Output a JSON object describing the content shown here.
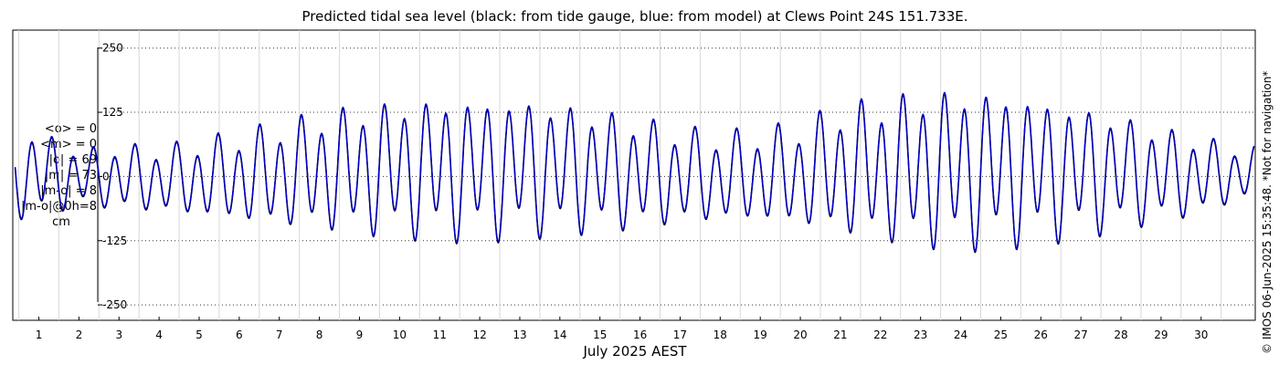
{
  "title": "Predicted tidal sea level (black: from tide gauge, blue: from model) at Clews Point 24S 151.733E.",
  "stats": [
    "<o> = 0",
    "<m> = 0",
    "|o| = 69",
    "|m| = 73",
    "|m-o| = 8",
    "|m-o|@0h=8"
  ],
  "stats_unit": "cm",
  "footer": "© IMOS 06-Jun-2025 15:35:48. *Not for navigation*",
  "chart_data": {
    "type": "line",
    "title": "Predicted tidal sea level (black: from tide gauge, blue: from model) at Clews Point 24S 151.733E.",
    "xlabel": "July 2025 AEST",
    "ylabel": "",
    "ylim": [
      -280,
      285
    ],
    "xlim": [
      0.35,
      31.35
    ],
    "y_ticks": [
      250,
      125,
      0,
      -125,
      -250
    ],
    "y_tick_labels": [
      "250",
      "125",
      "0",
      "-125",
      "-250"
    ],
    "x_ticks": [
      1,
      2,
      3,
      4,
      5,
      6,
      7,
      8,
      9,
      10,
      11,
      12,
      13,
      14,
      15,
      16,
      17,
      18,
      19,
      20,
      21,
      22,
      23,
      24,
      25,
      26,
      27,
      28,
      29,
      30
    ],
    "x_tick_labels": [
      "1",
      "2",
      "3",
      "4",
      "5",
      "6",
      "7",
      "8",
      "9",
      "10",
      "11",
      "12",
      "13",
      "14",
      "15",
      "16",
      "17",
      "18",
      "19",
      "20",
      "21",
      "22",
      "23",
      "24",
      "25",
      "26",
      "27",
      "28",
      "29",
      "30"
    ],
    "grid": true,
    "series": [
      {
        "name": "from tide gauge",
        "color": "#000000",
        "tide_model": {
          "semidiurnal_period_days": 0.5175,
          "diurnal_period_days": 1.0758,
          "mean": 0
        }
      },
      {
        "name": "from model",
        "color": "#0000cc",
        "tide_model": {
          "semidiurnal_period_days": 0.5175,
          "diurnal_period_days": 1.0758,
          "mean": 0
        }
      }
    ],
    "daily_high_low": [
      {
        "day": 1,
        "high": 95,
        "low": -85
      },
      {
        "day": 2,
        "high": 55,
        "low": -60
      },
      {
        "day": 3,
        "high": 65,
        "low": -70
      },
      {
        "day": 4,
        "high": 60,
        "low": -75
      },
      {
        "day": 5,
        "high": 75,
        "low": -85
      },
      {
        "day": 6,
        "high": 90,
        "low": -95
      },
      {
        "day": 7,
        "high": 110,
        "low": -105
      },
      {
        "day": 8,
        "high": 130,
        "low": -110
      },
      {
        "day": 9,
        "high": 145,
        "low": -120
      },
      {
        "day": 10,
        "high": 155,
        "low": -125
      },
      {
        "day": 11,
        "high": 160,
        "low": -130
      },
      {
        "day": 12,
        "high": 160,
        "low": -130
      },
      {
        "day": 13,
        "high": 160,
        "low": -125
      },
      {
        "day": 14,
        "high": 150,
        "low": -120
      },
      {
        "day": 15,
        "high": 135,
        "low": -115
      },
      {
        "day": 16,
        "high": 120,
        "low": -110
      },
      {
        "day": 17,
        "high": 100,
        "low": -100
      },
      {
        "day": 18,
        "high": 90,
        "low": -95
      },
      {
        "day": 19,
        "high": 95,
        "low": -95
      },
      {
        "day": 20,
        "high": 110,
        "low": -105
      },
      {
        "day": 21,
        "high": 145,
        "low": -120
      },
      {
        "day": 22,
        "high": 160,
        "low": -135
      },
      {
        "day": 23,
        "high": 175,
        "low": -145
      },
      {
        "day": 24,
        "high": 180,
        "low": -150
      },
      {
        "day": 25,
        "high": 175,
        "low": -145
      },
      {
        "day": 26,
        "high": 160,
        "low": -135
      },
      {
        "day": 27,
        "high": 145,
        "low": -125
      },
      {
        "day": 28,
        "high": 125,
        "low": -110
      },
      {
        "day": 29,
        "high": 100,
        "low": -95
      },
      {
        "day": 30,
        "high": 80,
        "low": -80
      },
      {
        "day": 31,
        "high": 60,
        "low": -50
      }
    ]
  }
}
